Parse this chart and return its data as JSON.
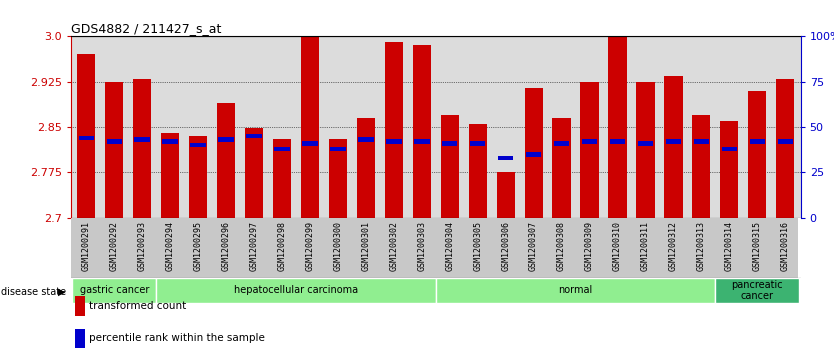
{
  "title": "GDS4882 / 211427_s_at",
  "samples": [
    "GSM1200291",
    "GSM1200292",
    "GSM1200293",
    "GSM1200294",
    "GSM1200295",
    "GSM1200296",
    "GSM1200297",
    "GSM1200298",
    "GSM1200299",
    "GSM1200300",
    "GSM1200301",
    "GSM1200302",
    "GSM1200303",
    "GSM1200304",
    "GSM1200305",
    "GSM1200306",
    "GSM1200307",
    "GSM1200308",
    "GSM1200309",
    "GSM1200310",
    "GSM1200311",
    "GSM1200312",
    "GSM1200313",
    "GSM1200314",
    "GSM1200315",
    "GSM1200316"
  ],
  "transformed_count": [
    2.97,
    2.925,
    2.93,
    2.84,
    2.835,
    2.89,
    2.848,
    2.83,
    3.0,
    2.83,
    2.865,
    2.99,
    2.985,
    2.87,
    2.855,
    2.775,
    2.915,
    2.865,
    2.925,
    3.0,
    2.925,
    2.935,
    2.87,
    2.86,
    2.91,
    2.93
  ],
  "percentile_rank": [
    44,
    42,
    43,
    42,
    40,
    43,
    45,
    38,
    41,
    38,
    43,
    42,
    42,
    41,
    41,
    33,
    35,
    41,
    42,
    42,
    41,
    42,
    42,
    38,
    42,
    42
  ],
  "ylim_left": [
    2.7,
    3.0
  ],
  "ylim_right": [
    0,
    100
  ],
  "yticks_left": [
    2.7,
    2.775,
    2.85,
    2.925,
    3.0
  ],
  "yticks_right": [
    0,
    25,
    50,
    75,
    100
  ],
  "ytick_labels_right": [
    "0",
    "25",
    "50",
    "75",
    "100%"
  ],
  "group_extents": [
    [
      0,
      2,
      "gastric cancer",
      "#90EE90"
    ],
    [
      3,
      12,
      "hepatocellular carcinoma",
      "#90EE90"
    ],
    [
      13,
      22,
      "normal",
      "#90EE90"
    ],
    [
      23,
      25,
      "pancreatic\ncancer",
      "#3CB371"
    ]
  ],
  "bar_color": "#CC0000",
  "percentile_color": "#0000CC",
  "background_color": "#DCDCDC",
  "left_label_color": "#CC0000",
  "right_label_color": "#0000CC",
  "disease_state_label": "disease state",
  "legend_items": [
    [
      "#CC0000",
      "transformed count"
    ],
    [
      "#0000CC",
      "percentile rank within the sample"
    ]
  ]
}
